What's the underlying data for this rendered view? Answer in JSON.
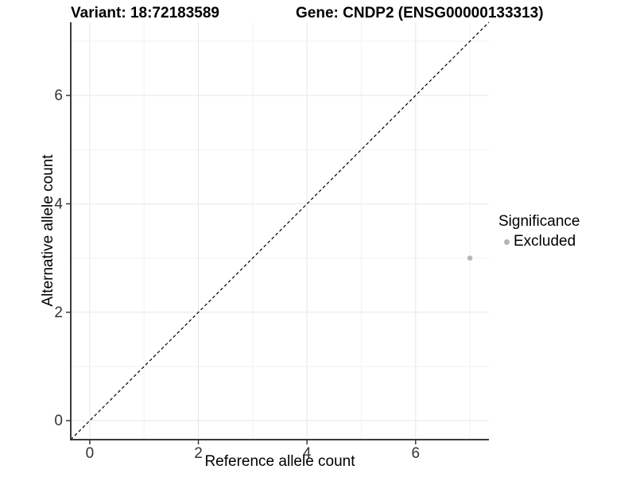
{
  "chart_data": {
    "type": "scatter",
    "title_left": "Variant: 18:72183589",
    "title_right": "Gene: CNDP2 (ENSG00000133313)",
    "xlabel": "Reference allele count",
    "ylabel": "Alternative allele count",
    "xlim": [
      -0.35,
      7.35
    ],
    "ylim": [
      -0.35,
      7.35
    ],
    "x_ticks": [
      0,
      2,
      4,
      6
    ],
    "y_ticks": [
      0,
      2,
      4,
      6
    ],
    "x_minor_ticks": [
      1,
      3,
      5,
      7
    ],
    "y_minor_ticks": [
      1,
      3,
      5,
      7
    ],
    "grid": true,
    "points": [
      {
        "x": 7,
        "y": 3,
        "significance": "Excluded"
      }
    ],
    "point_color": "#b5b5b5",
    "point_radius": 3.2,
    "reference_line": {
      "type": "identity",
      "style": "dashed",
      "color": "#000000"
    },
    "legend": {
      "title": "Significance",
      "position": "right",
      "items": [
        {
          "label": "Excluded",
          "color": "#b5b5b5"
        }
      ]
    },
    "colors": {
      "axis_line": "#3a3a3a",
      "tick_text": "#333333",
      "grid_major": "#e7e7e7",
      "grid_minor": "#f2f2f2"
    }
  }
}
